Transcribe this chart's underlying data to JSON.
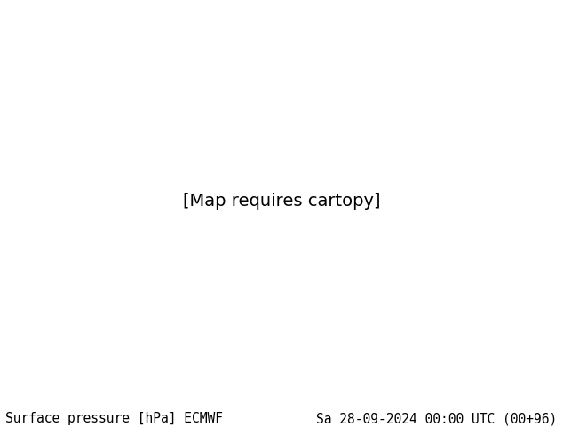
{
  "title_left": "Surface pressure [hPa] ECMWF",
  "title_right": "Sa 28-09-2024 00:00 UTC (00+96)",
  "title_fontsize": 10.5,
  "title_color": "#000000",
  "background_color": "#ffffff",
  "map_bg_color": "#c8dff0",
  "figsize": [
    6.34,
    4.9
  ],
  "dpi": 100
}
